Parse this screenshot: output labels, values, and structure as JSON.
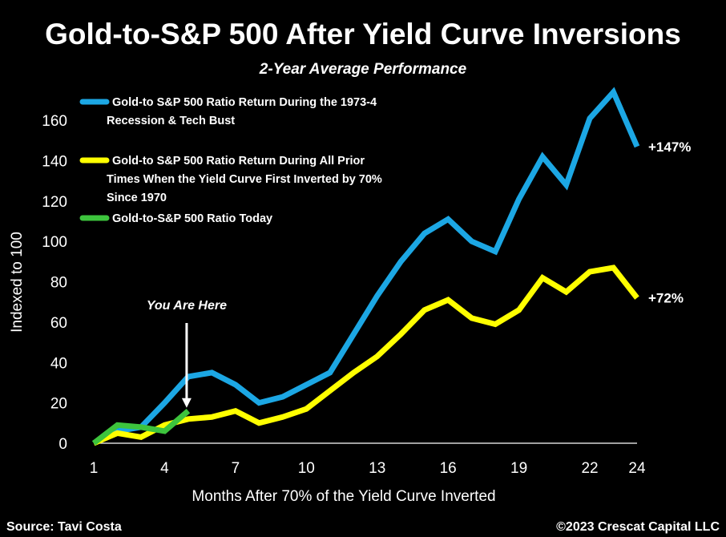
{
  "chart_data": {
    "type": "line",
    "title": "Gold-to-S&P 500 After Yield Curve Inversions",
    "subtitle": "2-Year Average Performance",
    "xlabel": "Months After 70% of the Yield Curve Inverted",
    "ylabel": "Indexed to 100",
    "xlim": [
      1,
      24
    ],
    "ylim": [
      0,
      170
    ],
    "x_ticks": [
      1,
      4,
      7,
      10,
      13,
      16,
      19,
      22,
      24
    ],
    "y_ticks": [
      0,
      20,
      40,
      60,
      80,
      100,
      120,
      140,
      160
    ],
    "grid": false,
    "legend_position": "top-left",
    "series": [
      {
        "name": "Gold-to S&P 500 Ratio Return During the 1973-4\nRecession & Tech Bust",
        "color": "#1ca7e4",
        "x": [
          1,
          2,
          3,
          4,
          5,
          6,
          7,
          8,
          9,
          10,
          11,
          12,
          13,
          14,
          15,
          16,
          17,
          18,
          19,
          20,
          21,
          22,
          23,
          24
        ],
        "values": [
          0,
          6,
          8,
          20,
          33,
          35,
          29,
          20,
          23,
          29,
          35,
          54,
          73,
          90,
          104,
          111,
          100,
          95,
          121,
          142,
          128,
          161,
          174,
          147
        ],
        "end_label": "+147%"
      },
      {
        "name": "Gold-to S&P 500 Ratio Return During All Prior\nTimes When the Yield Curve First Inverted by 70%\nSince 1970",
        "color": "#ffff00",
        "x": [
          1,
          2,
          3,
          4,
          5,
          6,
          7,
          8,
          9,
          10,
          11,
          12,
          13,
          14,
          15,
          16,
          17,
          18,
          19,
          20,
          21,
          22,
          23,
          24
        ],
        "values": [
          0,
          5,
          3,
          9,
          12,
          13,
          16,
          10,
          13,
          17,
          26,
          35,
          43,
          54,
          66,
          71,
          62,
          59,
          66,
          82,
          75,
          85,
          87,
          72
        ],
        "end_label": "+72%"
      },
      {
        "name": "Gold-to-S&P 500 Ratio Today",
        "color": "#3dc43d",
        "x": [
          1,
          2,
          3,
          4,
          5
        ],
        "values": [
          0,
          9,
          8,
          6,
          16
        ]
      }
    ],
    "annotations": [
      {
        "text": "You Are Here",
        "x": 5,
        "y": 16,
        "style": "arrow-down"
      }
    ]
  },
  "footer": {
    "source": "Source: Tavi Costa",
    "copyright": "©2023 Crescat Capital LLC"
  }
}
